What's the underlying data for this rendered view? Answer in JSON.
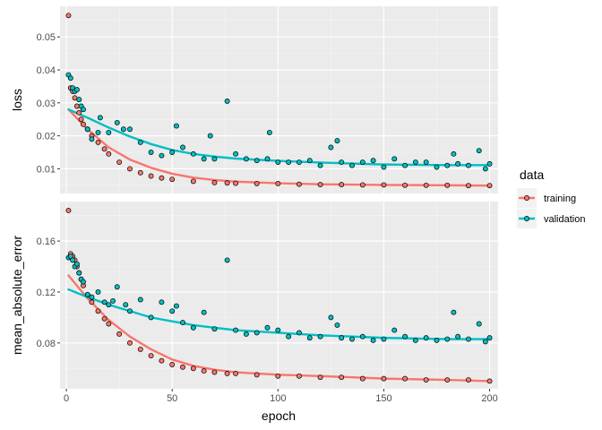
{
  "chart_data": {
    "type": "scatter",
    "facet_variable": "metric",
    "legend": {
      "title": "data",
      "placement": "right",
      "entries": [
        {
          "label": "training",
          "color": "#F8766D"
        },
        {
          "label": "validation",
          "color": "#00BFC4"
        }
      ]
    },
    "xlabel": "epoch",
    "xlim": [
      -3,
      204
    ],
    "x_ticks": [
      0,
      50,
      100,
      150,
      200
    ],
    "x_ticks_labels": [
      "0",
      "50",
      "100",
      "150",
      "200"
    ],
    "panels": [
      {
        "ylabel": "loss",
        "ylim": [
          0.0025,
          0.0593
        ],
        "y_ticks": [
          0.01,
          0.02,
          0.03,
          0.04,
          0.05
        ],
        "y_ticks_labels": [
          "0.01",
          "0.02",
          "0.03",
          "0.04",
          "0.05"
        ],
        "series": [
          {
            "name": "training",
            "points": [
              [
                1,
                0.0565
              ],
              [
                2,
                0.0345
              ],
              [
                3,
                0.0335
              ],
              [
                4,
                0.0315
              ],
              [
                5,
                0.029
              ],
              [
                6,
                0.027
              ],
              [
                7,
                0.025
              ],
              [
                8,
                0.0235
              ],
              [
                10,
                0.022
              ],
              [
                12,
                0.02
              ],
              [
                15,
                0.018
              ],
              [
                18,
                0.016
              ],
              [
                20,
                0.0145
              ],
              [
                25,
                0.012
              ],
              [
                30,
                0.01
              ],
              [
                35,
                0.0088
              ],
              [
                40,
                0.0078
              ],
              [
                45,
                0.0072
              ],
              [
                50,
                0.0068
              ],
              [
                60,
                0.0062
              ],
              [
                70,
                0.0058
              ],
              [
                76,
                0.0057
              ],
              [
                80,
                0.0056
              ],
              [
                90,
                0.0055
              ],
              [
                100,
                0.0055
              ],
              [
                110,
                0.0053
              ],
              [
                120,
                0.0052
              ],
              [
                130,
                0.0052
              ],
              [
                140,
                0.0051
              ],
              [
                150,
                0.0051
              ],
              [
                160,
                0.005
              ],
              [
                170,
                0.005
              ],
              [
                180,
                0.005
              ],
              [
                190,
                0.0049
              ],
              [
                200,
                0.0049
              ]
            ],
            "trend": [
              [
                1,
                0.028
              ],
              [
                10,
                0.022
              ],
              [
                20,
                0.0165
              ],
              [
                30,
                0.0128
              ],
              [
                40,
                0.0103
              ],
              [
                50,
                0.0085
              ],
              [
                60,
                0.0073
              ],
              [
                70,
                0.0066
              ],
              [
                80,
                0.0061
              ],
              [
                100,
                0.0056
              ],
              [
                120,
                0.0053
              ],
              [
                150,
                0.0051
              ],
              [
                180,
                0.005
              ],
              [
                200,
                0.0049
              ]
            ]
          },
          {
            "name": "validation",
            "points": [
              [
                1,
                0.0385
              ],
              [
                2,
                0.0375
              ],
              [
                3,
                0.0345
              ],
              [
                4,
                0.0335
              ],
              [
                5,
                0.034
              ],
              [
                6,
                0.031
              ],
              [
                7,
                0.029
              ],
              [
                8,
                0.028
              ],
              [
                10,
                0.022
              ],
              [
                12,
                0.019
              ],
              [
                15,
                0.021
              ],
              [
                16,
                0.0255
              ],
              [
                20,
                0.021
              ],
              [
                24,
                0.024
              ],
              [
                27,
                0.022
              ],
              [
                30,
                0.022
              ],
              [
                35,
                0.018
              ],
              [
                40,
                0.015
              ],
              [
                45,
                0.014
              ],
              [
                50,
                0.015
              ],
              [
                52,
                0.023
              ],
              [
                55,
                0.0165
              ],
              [
                60,
                0.0145
              ],
              [
                65,
                0.013
              ],
              [
                68,
                0.02
              ],
              [
                70,
                0.013
              ],
              [
                76,
                0.0305
              ],
              [
                80,
                0.0145
              ],
              [
                85,
                0.013
              ],
              [
                90,
                0.0125
              ],
              [
                95,
                0.013
              ],
              [
                96,
                0.021
              ],
              [
                100,
                0.012
              ],
              [
                105,
                0.012
              ],
              [
                110,
                0.012
              ],
              [
                115,
                0.0125
              ],
              [
                120,
                0.011
              ],
              [
                125,
                0.0165
              ],
              [
                128,
                0.0185
              ],
              [
                130,
                0.012
              ],
              [
                135,
                0.011
              ],
              [
                140,
                0.012
              ],
              [
                145,
                0.0125
              ],
              [
                150,
                0.0105
              ],
              [
                155,
                0.013
              ],
              [
                160,
                0.011
              ],
              [
                165,
                0.012
              ],
              [
                170,
                0.012
              ],
              [
                175,
                0.0105
              ],
              [
                180,
                0.011
              ],
              [
                183,
                0.0145
              ],
              [
                185,
                0.0115
              ],
              [
                190,
                0.011
              ],
              [
                195,
                0.0155
              ],
              [
                198,
                0.01
              ],
              [
                200,
                0.0115
              ]
            ],
            "trend": [
              [
                1,
                0.028
              ],
              [
                10,
                0.0255
              ],
              [
                20,
                0.0225
              ],
              [
                30,
                0.0198
              ],
              [
                40,
                0.0175
              ],
              [
                50,
                0.0157
              ],
              [
                60,
                0.0145
              ],
              [
                70,
                0.0137
              ],
              [
                80,
                0.0131
              ],
              [
                100,
                0.0124
              ],
              [
                120,
                0.0119
              ],
              [
                150,
                0.0113
              ],
              [
                180,
                0.0111
              ],
              [
                200,
                0.0111
              ]
            ]
          }
        ]
      },
      {
        "ylabel": "mean_absolute_error",
        "ylim": [
          0.044,
          0.191
        ],
        "y_ticks": [
          0.08,
          0.12,
          0.16
        ],
        "y_ticks_labels": [
          "0.08",
          "0.12",
          "0.16"
        ],
        "series": [
          {
            "name": "training",
            "points": [
              [
                1,
                0.184
              ],
              [
                2,
                0.15
              ],
              [
                3,
                0.148
              ],
              [
                4,
                0.145
              ],
              [
                5,
                0.14
              ],
              [
                6,
                0.135
              ],
              [
                7,
                0.13
              ],
              [
                8,
                0.125
              ],
              [
                10,
                0.118
              ],
              [
                12,
                0.112
              ],
              [
                15,
                0.105
              ],
              [
                18,
                0.099
              ],
              [
                20,
                0.095
              ],
              [
                25,
                0.087
              ],
              [
                30,
                0.08
              ],
              [
                35,
                0.075
              ],
              [
                40,
                0.07
              ],
              [
                45,
                0.066
              ],
              [
                50,
                0.063
              ],
              [
                55,
                0.061
              ],
              [
                60,
                0.06
              ],
              [
                65,
                0.058
              ],
              [
                70,
                0.057
              ],
              [
                76,
                0.056
              ],
              [
                80,
                0.056
              ],
              [
                90,
                0.055
              ],
              [
                100,
                0.054
              ],
              [
                110,
                0.054
              ],
              [
                120,
                0.053
              ],
              [
                130,
                0.053
              ],
              [
                140,
                0.052
              ],
              [
                150,
                0.052
              ],
              [
                160,
                0.052
              ],
              [
                170,
                0.051
              ],
              [
                180,
                0.051
              ],
              [
                190,
                0.051
              ],
              [
                200,
                0.05
              ]
            ],
            "trend": [
              [
                1,
                0.133
              ],
              [
                10,
                0.115
              ],
              [
                20,
                0.098
              ],
              [
                30,
                0.085
              ],
              [
                40,
                0.075
              ],
              [
                50,
                0.067
              ],
              [
                60,
                0.062
              ],
              [
                70,
                0.059
              ],
              [
                80,
                0.057
              ],
              [
                100,
                0.055
              ],
              [
                120,
                0.054
              ],
              [
                150,
                0.052
              ],
              [
                180,
                0.051
              ],
              [
                200,
                0.05
              ]
            ]
          },
          {
            "name": "validation",
            "points": [
              [
                1,
                0.147
              ],
              [
                2,
                0.148
              ],
              [
                3,
                0.145
              ],
              [
                4,
                0.14
              ],
              [
                5,
                0.142
              ],
              [
                6,
                0.135
              ],
              [
                7,
                0.13
              ],
              [
                8,
                0.128
              ],
              [
                10,
                0.118
              ],
              [
                12,
                0.116
              ],
              [
                15,
                0.12
              ],
              [
                18,
                0.112
              ],
              [
                20,
                0.11
              ],
              [
                22,
                0.113
              ],
              [
                24,
                0.124
              ],
              [
                28,
                0.11
              ],
              [
                30,
                0.105
              ],
              [
                35,
                0.114
              ],
              [
                40,
                0.1
              ],
              [
                45,
                0.112
              ],
              [
                50,
                0.105
              ],
              [
                52,
                0.109
              ],
              [
                55,
                0.096
              ],
              [
                60,
                0.092
              ],
              [
                65,
                0.104
              ],
              [
                70,
                0.091
              ],
              [
                76,
                0.145
              ],
              [
                80,
                0.09
              ],
              [
                85,
                0.087
              ],
              [
                90,
                0.088
              ],
              [
                95,
                0.092
              ],
              [
                100,
                0.09
              ],
              [
                105,
                0.085
              ],
              [
                110,
                0.088
              ],
              [
                115,
                0.084
              ],
              [
                120,
                0.085
              ],
              [
                125,
                0.1
              ],
              [
                128,
                0.094
              ],
              [
                130,
                0.084
              ],
              [
                135,
                0.083
              ],
              [
                140,
                0.085
              ],
              [
                145,
                0.082
              ],
              [
                150,
                0.083
              ],
              [
                155,
                0.09
              ],
              [
                160,
                0.085
              ],
              [
                165,
                0.082
              ],
              [
                170,
                0.084
              ],
              [
                175,
                0.082
              ],
              [
                180,
                0.083
              ],
              [
                183,
                0.104
              ],
              [
                185,
                0.085
              ],
              [
                190,
                0.083
              ],
              [
                195,
                0.095
              ],
              [
                198,
                0.081
              ],
              [
                200,
                0.084
              ]
            ],
            "trend": [
              [
                1,
                0.122
              ],
              [
                10,
                0.116
              ],
              [
                20,
                0.11
              ],
              [
                30,
                0.105
              ],
              [
                40,
                0.1
              ],
              [
                50,
                0.097
              ],
              [
                60,
                0.094
              ],
              [
                70,
                0.092
              ],
              [
                80,
                0.09
              ],
              [
                100,
                0.088
              ],
              [
                120,
                0.086
              ],
              [
                150,
                0.084
              ],
              [
                180,
                0.083
              ],
              [
                200,
                0.083
              ]
            ]
          }
        ]
      }
    ]
  }
}
